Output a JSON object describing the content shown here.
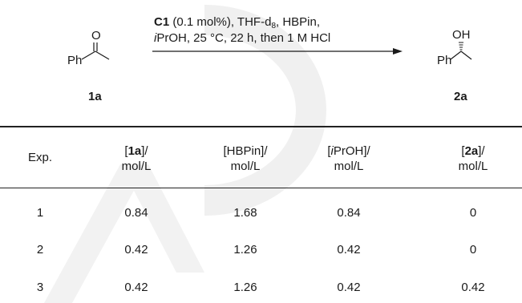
{
  "scheme": {
    "reactant_group": "Ph",
    "reactant_atom": "O",
    "reactant_label": "1a",
    "product_group": "Ph",
    "product_atom": "OH",
    "product_label": "2a",
    "conditions": {
      "catalyst": "C1",
      "line1_rest_a": " (0.1 mol%), THF-d",
      "line1_sub": "8",
      "line1_rest_b": ", HBPin,",
      "line2_italic": "i",
      "line2_rest": "PrOH, 25 °C, 22 h, then 1 M HCl"
    }
  },
  "table": {
    "headers": [
      {
        "pre": "Exp.",
        "bold": "",
        "post": "",
        "unit": ""
      },
      {
        "pre": "[",
        "bold": "1a",
        "post": "]/",
        "unit": "mol/L"
      },
      {
        "pre": "[HBPin]/",
        "bold": "",
        "post": "",
        "unit": "mol/L"
      },
      {
        "pre": "[",
        "italic": "i",
        "post": "PrOH]/",
        "unit": "mol/L"
      },
      {
        "pre": "[",
        "bold": "2a",
        "post": "]/",
        "unit": "mol/L"
      }
    ],
    "rows": [
      [
        "1",
        "0.84",
        "1.68",
        "0.84",
        "0"
      ],
      [
        "2",
        "0.42",
        "1.26",
        "0.42",
        "0"
      ],
      [
        "3",
        "0.42",
        "1.26",
        "0.42",
        "0.42"
      ]
    ]
  }
}
